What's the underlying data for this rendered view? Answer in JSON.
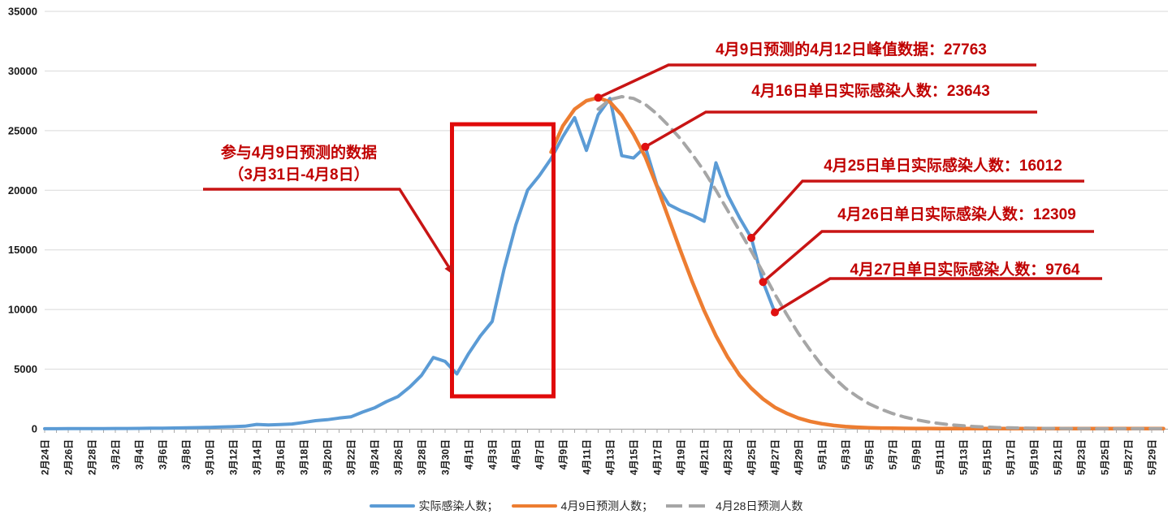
{
  "chart_data": {
    "type": "line",
    "title": "",
    "grid": "horizontal",
    "legend_position": "bottom",
    "ylim": [
      0,
      35000
    ],
    "y_ticks": [
      0,
      5000,
      10000,
      15000,
      20000,
      25000,
      30000,
      35000
    ],
    "x_axis": {
      "start_date": "2月24日",
      "end_label": "5月29日",
      "tick_interval_days": 2,
      "num_days": 96
    },
    "x_tick_labels": [
      "2月24日",
      "2月26日",
      "2月28日",
      "3月2日",
      "3月4日",
      "3月6日",
      "3月8日",
      "3月10日",
      "3月12日",
      "3月14日",
      "3月16日",
      "3月18日",
      "3月20日",
      "3月22日",
      "3月24日",
      "3月26日",
      "3月28日",
      "3月30日",
      "4月1日",
      "4月3日",
      "4月5日",
      "4月7日",
      "4月9日",
      "4月11日",
      "4月13日",
      "4月15日",
      "4月17日",
      "4月19日",
      "4月21日",
      "4月23日",
      "4月25日",
      "4月27日",
      "4月29日",
      "5月1日",
      "5月3日",
      "5月5日",
      "5月7日",
      "5月9日",
      "5月11日",
      "5月13日",
      "5月15日",
      "5月17日",
      "5月19日",
      "5月21日",
      "5月23日",
      "5月25日",
      "5月27日",
      "5月29日"
    ],
    "series": [
      {
        "key": "actual",
        "name": "实际感染人数；",
        "color": "#5B9BD5",
        "style": "solid",
        "start_day_index": 0,
        "start_date": "2月24日",
        "end_date": "4月27日",
        "values": [
          10,
          10,
          15,
          15,
          20,
          20,
          25,
          30,
          35,
          45,
          55,
          65,
          80,
          100,
          120,
          150,
          180,
          220,
          370,
          330,
          360,
          400,
          530,
          680,
          760,
          900,
          1000,
          1400,
          1750,
          2270,
          2700,
          3500,
          4480,
          5980,
          5650,
          4600,
          6310,
          7790,
          9000,
          13350,
          17080,
          20000,
          21220,
          22650,
          24500,
          26090,
          23340,
          26330,
          27700,
          22900,
          22700,
          23643,
          20400,
          18800,
          18300,
          17900,
          17400,
          22300,
          19600,
          17700,
          16012,
          12309,
          9764
        ]
      },
      {
        "key": "forecast-apr9",
        "name": "4月9日预测人数；",
        "color": "#ED7D31",
        "style": "solid",
        "start_day_index": 43,
        "start_date": "4月8日",
        "end_date": "5月30日",
        "values": [
          23200,
          25400,
          26800,
          27500,
          27763,
          27400,
          26300,
          24700,
          22800,
          20300,
          17600,
          14900,
          12300,
          9900,
          7800,
          6000,
          4500,
          3400,
          2500,
          1800,
          1300,
          900,
          620,
          420,
          280,
          190,
          130,
          90,
          60,
          45,
          35,
          30,
          25,
          20,
          20,
          20,
          20,
          20,
          20,
          20,
          20,
          20,
          20,
          20,
          20,
          20,
          20,
          20,
          20,
          20,
          20,
          20,
          20
        ]
      },
      {
        "key": "forecast-apr28",
        "name": "4月28日预测人数",
        "color": "#A6A6A6",
        "style": "dashed",
        "start_day_index": 47,
        "start_date": "4月12日",
        "end_date": "5月30日",
        "values": [
          26800,
          27600,
          27850,
          27700,
          27200,
          26400,
          25400,
          24300,
          23000,
          21600,
          20000,
          18300,
          16600,
          14900,
          13100,
          11300,
          9600,
          8000,
          6600,
          5300,
          4300,
          3400,
          2700,
          2100,
          1650,
          1280,
          990,
          760,
          580,
          440,
          330,
          250,
          190,
          140,
          105,
          80,
          60,
          45,
          35,
          25,
          20,
          15,
          15,
          10,
          10,
          10,
          10,
          10,
          10
        ]
      }
    ],
    "annotations": [
      {
        "text": "4月9日预测的4月12日峰值数据：27763",
        "date": "4月12日",
        "value": 27763,
        "day_index": 47
      },
      {
        "text": "4月16日单日实际感染人数：23643",
        "date": "4月16日",
        "value": 23643,
        "day_index": 51
      },
      {
        "text": "4月25日单日实际感染人数：16012",
        "date": "4月25日",
        "value": 16012,
        "day_index": 60
      },
      {
        "text": "4月26日单日实际感染人数：12309",
        "date": "4月26日",
        "value": 12309,
        "day_index": 61
      },
      {
        "text": "4月27日单日实际感染人数：9764",
        "date": "4月27日",
        "value": 9764,
        "day_index": 62
      }
    ],
    "highlight_box": {
      "text_line1": "参与4月9日预测的数据",
      "text_line2": "（3月31日-4月8日）",
      "date_range": "3月31日-4月8日",
      "day_start": 35,
      "day_end": 43
    }
  },
  "colors": {
    "actual": "#5B9BD5",
    "forecast_apr9": "#ED7D31",
    "forecast_apr28": "#A6A6A6",
    "annotation_text": "#C00000",
    "annotation_line": "#C81414",
    "highlight_box": "#E00A0A",
    "dot": "#E01010",
    "gridline": "#D9D9D9",
    "axis": "#ABABAB"
  }
}
